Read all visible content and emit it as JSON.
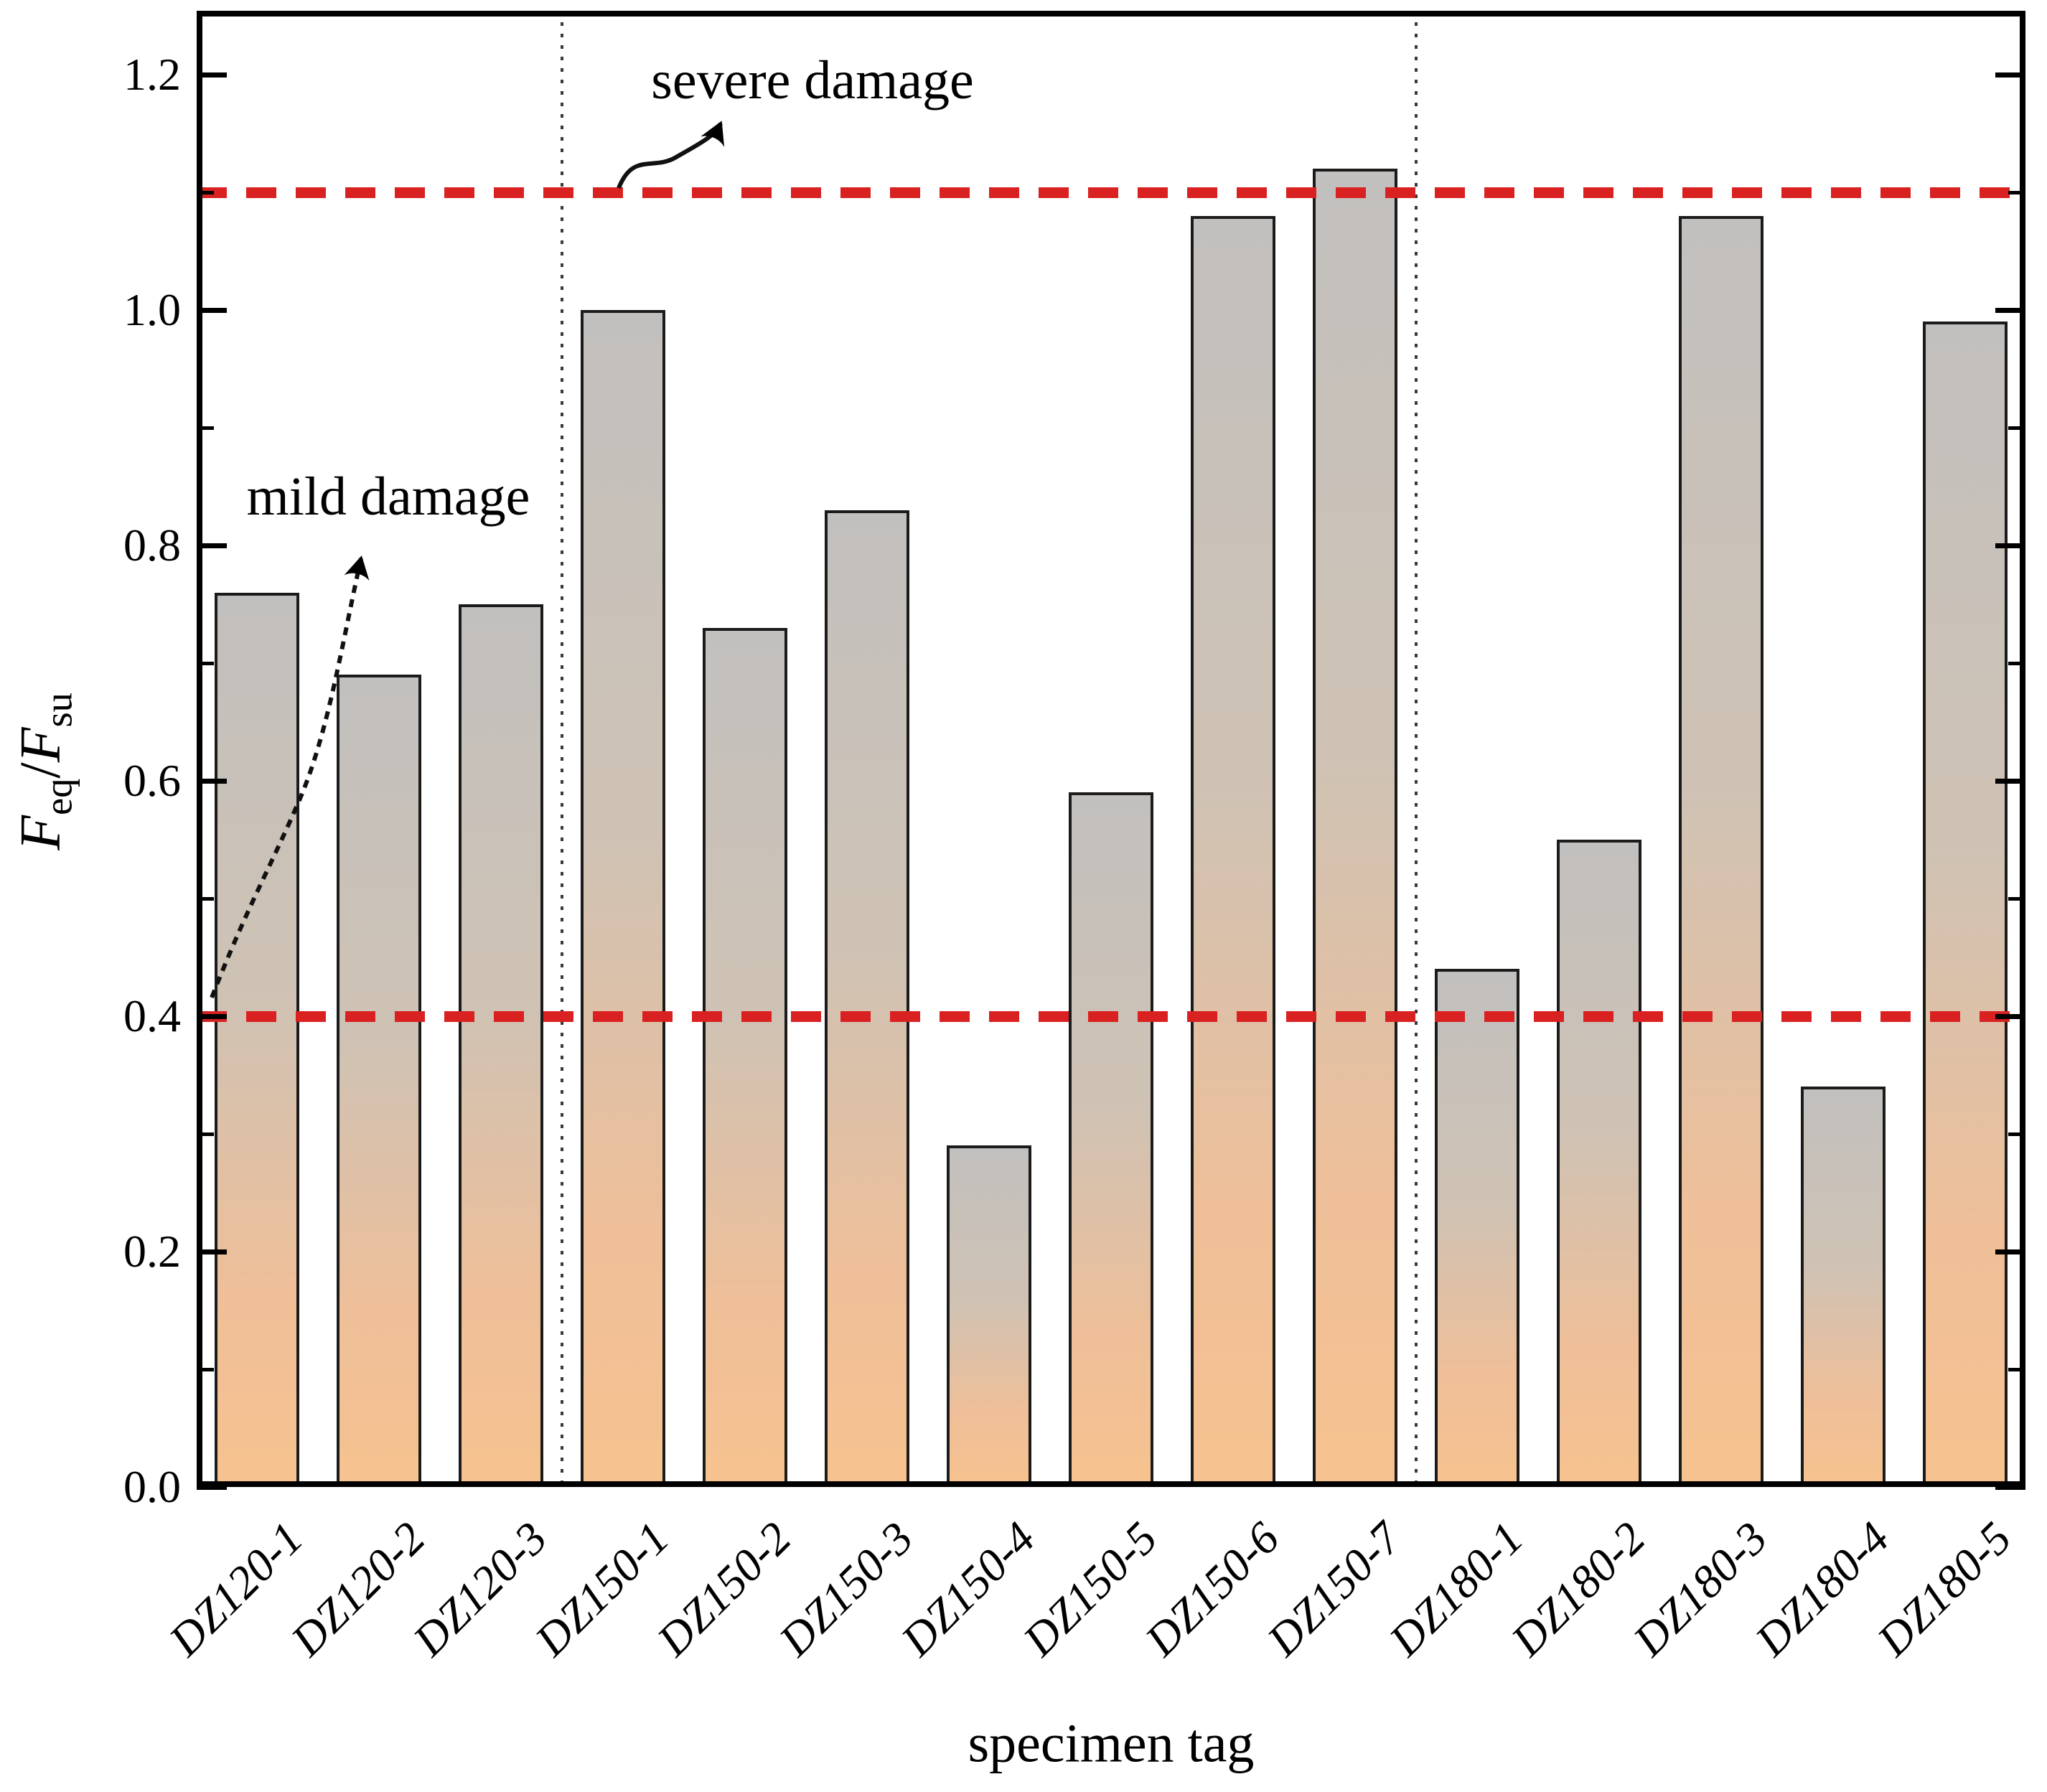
{
  "chart_data": {
    "type": "bar",
    "title": "",
    "xlabel": "specimen tag",
    "ylabel": {
      "f1": "F",
      "sub1": "eq",
      "sep": "/",
      "f2": "F",
      "sub2": "su"
    },
    "categories": [
      "DZ120-1",
      "DZ120-2",
      "DZ120-3",
      "DZ150-1",
      "DZ150-2",
      "DZ150-3",
      "DZ150-4",
      "DZ150-5",
      "DZ150-6",
      "DZ150-7",
      "DZ180-1",
      "DZ180-2",
      "DZ180-3",
      "DZ180-4",
      "DZ180-5"
    ],
    "values": [
      0.76,
      0.69,
      0.75,
      1.0,
      0.73,
      0.83,
      0.29,
      0.59,
      1.08,
      1.12,
      0.44,
      0.55,
      1.08,
      0.34,
      0.99
    ],
    "ylim": [
      0,
      1.25
    ],
    "yticks_major": [
      0.0,
      0.2,
      0.4,
      0.6,
      0.8,
      1.0,
      1.2
    ],
    "ytick_labels": [
      "0.0",
      "0.2",
      "0.4",
      "0.6",
      "0.8",
      "1.0",
      "1.2"
    ],
    "yticks_minor": [
      0.1,
      0.3,
      0.5,
      0.7,
      0.9,
      1.1
    ],
    "grid": false,
    "legend": false,
    "thresholds": [
      {
        "value": 0.4,
        "label": "mild damage"
      },
      {
        "value": 1.1,
        "label": "severe damage"
      }
    ],
    "group_separators_after_index": [
      2,
      9
    ],
    "colors": {
      "bar_top": "#c2c0be",
      "bar_bottom": "#f6c28f",
      "bar_border": "#1b1b1b",
      "threshold_line": "#d92121",
      "separator_line": "#3a3a3a",
      "axis": "#000000"
    }
  }
}
